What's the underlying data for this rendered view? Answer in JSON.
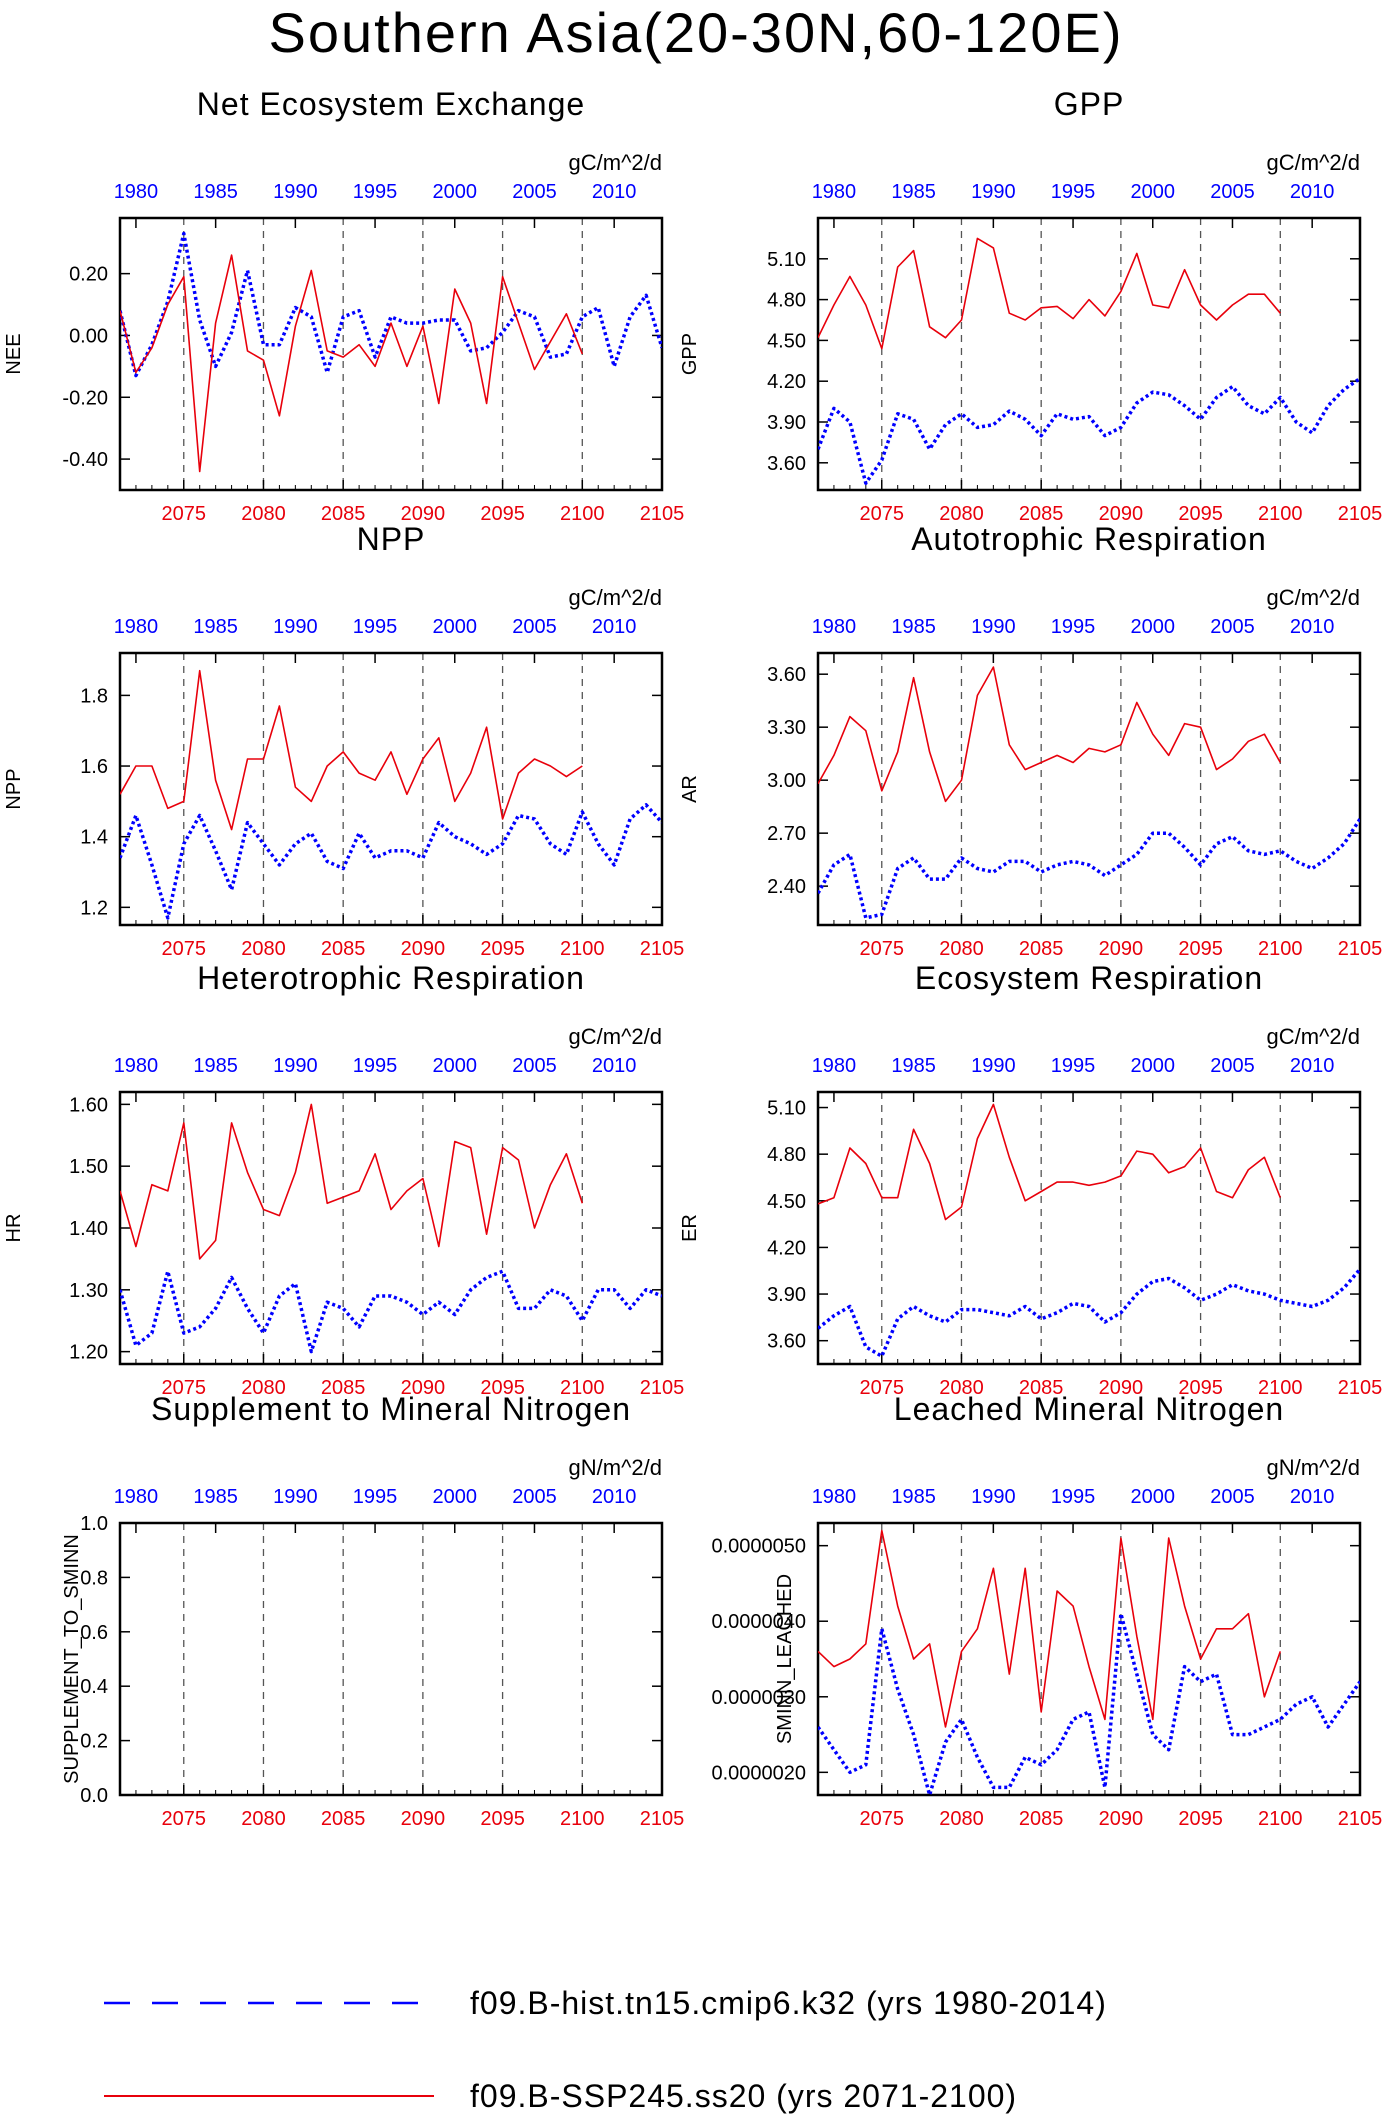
{
  "title": "Southern Asia(20-30N,60-120E)",
  "legend": [
    {
      "name": "f09.B-hist.tn15.cmip6.k32 (yrs 1980-2014)",
      "color": "#0000ff",
      "style": "dotted/dashed"
    },
    {
      "name": "f09.B-SSP245.ss20 (yrs 2071-2100)",
      "color": "#e8000b",
      "style": "solid"
    }
  ],
  "top_axis_ticks": [
    "1980",
    "1985",
    "1990",
    "1995",
    "2000",
    "2005",
    "2010"
  ],
  "bottom_axis_ticks": [
    "2075",
    "2080",
    "2085",
    "2090",
    "2095",
    "2100",
    "2105"
  ],
  "chart_data": [
    {
      "type": "line",
      "title": "Net Ecosystem Exchange",
      "ylabel": "NEE",
      "units": "gC/m^2/d",
      "ylim": [
        -0.5,
        0.38
      ],
      "yticks": [
        -0.4,
        -0.2,
        0.0,
        0.2
      ],
      "yticklabels": [
        "-0.40",
        "-0.20",
        "0.00",
        "0.20"
      ],
      "x_top": {
        "start": 1980,
        "end": 2014
      },
      "x_bottom": {
        "start": 2071,
        "end": 2100
      },
      "series": [
        {
          "name": "f09.B-hist.tn15.cmip6.k32 (yrs 1980-2014)",
          "values": [
            0.08,
            -0.13,
            -0.03,
            0.11,
            0.33,
            0.05,
            -0.1,
            0.01,
            0.21,
            -0.03,
            -0.03,
            0.09,
            0.06,
            -0.12,
            0.06,
            0.08,
            -0.07,
            0.06,
            0.04,
            0.04,
            0.05,
            0.05,
            -0.05,
            -0.04,
            0.01,
            0.08,
            0.06,
            -0.07,
            -0.06,
            0.06,
            0.09,
            -0.1,
            0.06,
            0.13,
            -0.04
          ]
        },
        {
          "name": "f09.B-SSP245.ss20 (yrs 2071-2100)",
          "values": [
            0.08,
            -0.12,
            -0.04,
            0.1,
            0.19,
            -0.44,
            0.04,
            0.26,
            -0.05,
            -0.08,
            -0.26,
            0.03,
            0.21,
            -0.05,
            -0.07,
            -0.03,
            -0.1,
            0.04,
            -0.1,
            0.03,
            -0.22,
            0.15,
            0.04,
            -0.22,
            0.19,
            0.04,
            -0.11,
            -0.02,
            0.07,
            -0.06
          ]
        }
      ]
    },
    {
      "type": "line",
      "title": "GPP",
      "ylabel": "GPP",
      "units": "gC/m^2/d",
      "ylim": [
        3.4,
        5.4
      ],
      "yticks": [
        3.6,
        3.9,
        4.2,
        4.5,
        4.8,
        5.1
      ],
      "yticklabels": [
        "3.60",
        "3.90",
        "4.20",
        "4.50",
        "4.80",
        "5.10"
      ],
      "x_top": {
        "start": 1980,
        "end": 2014
      },
      "x_bottom": {
        "start": 2071,
        "end": 2100
      },
      "series": [
        {
          "name": "f09.B-hist.tn15.cmip6.k32 (yrs 1980-2014)",
          "values": [
            3.7,
            4.0,
            3.9,
            3.45,
            3.62,
            3.96,
            3.92,
            3.7,
            3.88,
            3.96,
            3.86,
            3.88,
            3.98,
            3.92,
            3.8,
            3.96,
            3.92,
            3.94,
            3.8,
            3.86,
            4.04,
            4.12,
            4.1,
            4.02,
            3.92,
            4.08,
            4.16,
            4.02,
            3.96,
            4.08,
            3.9,
            3.82,
            4.02,
            4.14,
            4.22
          ]
        },
        {
          "name": "f09.B-SSP245.ss20 (yrs 2071-2100)",
          "values": [
            4.52,
            4.76,
            4.97,
            4.76,
            4.44,
            5.04,
            5.16,
            4.6,
            4.52,
            4.65,
            5.25,
            5.18,
            4.7,
            4.65,
            4.74,
            4.75,
            4.66,
            4.8,
            4.68,
            4.86,
            5.14,
            4.76,
            4.74,
            5.02,
            4.76,
            4.65,
            4.76,
            4.84,
            4.84,
            4.7
          ]
        }
      ]
    },
    {
      "type": "line",
      "title": "NPP",
      "ylabel": "NPP",
      "units": "gC/m^2/d",
      "ylim": [
        1.15,
        1.92
      ],
      "yticks": [
        1.2,
        1.4,
        1.6,
        1.8
      ],
      "yticklabels": [
        "1.2",
        "1.4",
        "1.6",
        "1.8"
      ],
      "x_top": {
        "start": 1980,
        "end": 2014
      },
      "x_bottom": {
        "start": 2071,
        "end": 2100
      },
      "series": [
        {
          "name": "f09.B-hist.tn15.cmip6.k32 (yrs 1980-2014)",
          "values": [
            1.34,
            1.46,
            1.32,
            1.17,
            1.38,
            1.46,
            1.36,
            1.25,
            1.44,
            1.38,
            1.32,
            1.38,
            1.41,
            1.33,
            1.31,
            1.41,
            1.34,
            1.36,
            1.36,
            1.34,
            1.44,
            1.4,
            1.38,
            1.35,
            1.38,
            1.46,
            1.45,
            1.38,
            1.35,
            1.47,
            1.38,
            1.32,
            1.45,
            1.49,
            1.44
          ]
        },
        {
          "name": "f09.B-SSP245.ss20 (yrs 2071-2100)",
          "values": [
            1.52,
            1.6,
            1.6,
            1.48,
            1.5,
            1.87,
            1.56,
            1.42,
            1.62,
            1.62,
            1.77,
            1.54,
            1.5,
            1.6,
            1.64,
            1.58,
            1.56,
            1.64,
            1.52,
            1.62,
            1.68,
            1.5,
            1.58,
            1.71,
            1.45,
            1.58,
            1.62,
            1.6,
            1.57,
            1.6
          ]
        }
      ]
    },
    {
      "type": "line",
      "title": "Autotrophic Respiration",
      "ylabel": "AR",
      "units": "gC/m^2/d",
      "ylim": [
        2.18,
        3.72
      ],
      "yticks": [
        2.4,
        2.7,
        3.0,
        3.3,
        3.6
      ],
      "yticklabels": [
        "2.40",
        "2.70",
        "3.00",
        "3.30",
        "3.60"
      ],
      "x_top": {
        "start": 1980,
        "end": 2014
      },
      "x_bottom": {
        "start": 2071,
        "end": 2100
      },
      "series": [
        {
          "name": "f09.B-hist.tn15.cmip6.k32 (yrs 1980-2014)",
          "values": [
            2.36,
            2.52,
            2.58,
            2.22,
            2.24,
            2.5,
            2.56,
            2.44,
            2.44,
            2.56,
            2.5,
            2.48,
            2.54,
            2.54,
            2.48,
            2.52,
            2.54,
            2.52,
            2.46,
            2.52,
            2.58,
            2.7,
            2.7,
            2.62,
            2.52,
            2.64,
            2.68,
            2.6,
            2.58,
            2.6,
            2.54,
            2.5,
            2.56,
            2.64,
            2.78
          ]
        },
        {
          "name": "f09.B-SSP245.ss20 (yrs 2071-2100)",
          "values": [
            2.98,
            3.14,
            3.36,
            3.28,
            2.94,
            3.16,
            3.58,
            3.16,
            2.88,
            3.0,
            3.48,
            3.64,
            3.2,
            3.06,
            3.1,
            3.14,
            3.1,
            3.18,
            3.16,
            3.2,
            3.44,
            3.26,
            3.14,
            3.32,
            3.3,
            3.06,
            3.12,
            3.22,
            3.26,
            3.1
          ]
        }
      ]
    },
    {
      "type": "line",
      "title": "Heterotrophic Respiration",
      "ylabel": "HR",
      "units": "gC/m^2/d",
      "ylim": [
        1.18,
        1.62
      ],
      "yticks": [
        1.2,
        1.3,
        1.4,
        1.5,
        1.6
      ],
      "yticklabels": [
        "1.20",
        "1.30",
        "1.40",
        "1.50",
        "1.60"
      ],
      "x_top": {
        "start": 1980,
        "end": 2014
      },
      "x_bottom": {
        "start": 2071,
        "end": 2100
      },
      "series": [
        {
          "name": "f09.B-hist.tn15.cmip6.k32 (yrs 1980-2014)",
          "values": [
            1.3,
            1.21,
            1.23,
            1.33,
            1.23,
            1.24,
            1.27,
            1.32,
            1.27,
            1.23,
            1.29,
            1.31,
            1.2,
            1.28,
            1.27,
            1.24,
            1.29,
            1.29,
            1.28,
            1.26,
            1.28,
            1.26,
            1.3,
            1.32,
            1.33,
            1.27,
            1.27,
            1.3,
            1.29,
            1.25,
            1.3,
            1.3,
            1.27,
            1.3,
            1.29
          ]
        },
        {
          "name": "f09.B-SSP245.ss20 (yrs 2071-2100)",
          "values": [
            1.46,
            1.37,
            1.47,
            1.46,
            1.57,
            1.35,
            1.38,
            1.57,
            1.49,
            1.43,
            1.42,
            1.49,
            1.6,
            1.44,
            1.45,
            1.46,
            1.52,
            1.43,
            1.46,
            1.48,
            1.37,
            1.54,
            1.53,
            1.39,
            1.53,
            1.51,
            1.4,
            1.47,
            1.52,
            1.44
          ]
        }
      ]
    },
    {
      "type": "line",
      "title": "Ecosystem Respiration",
      "ylabel": "ER",
      "units": "gC/m^2/d",
      "ylim": [
        3.45,
        5.2
      ],
      "yticks": [
        3.6,
        3.9,
        4.2,
        4.5,
        4.8,
        5.1
      ],
      "yticklabels": [
        "3.60",
        "3.90",
        "4.20",
        "4.50",
        "4.80",
        "5.10"
      ],
      "x_top": {
        "start": 1980,
        "end": 2014
      },
      "x_bottom": {
        "start": 2071,
        "end": 2100
      },
      "series": [
        {
          "name": "f09.B-hist.tn15.cmip6.k32 (yrs 1980-2014)",
          "values": [
            3.68,
            3.76,
            3.82,
            3.56,
            3.5,
            3.74,
            3.82,
            3.76,
            3.72,
            3.8,
            3.8,
            3.78,
            3.76,
            3.82,
            3.74,
            3.78,
            3.84,
            3.82,
            3.72,
            3.78,
            3.9,
            3.98,
            4.0,
            3.94,
            3.86,
            3.9,
            3.96,
            3.92,
            3.9,
            3.86,
            3.84,
            3.82,
            3.86,
            3.94,
            4.06
          ]
        },
        {
          "name": "f09.B-SSP245.ss20 (yrs 2071-2100)",
          "values": [
            4.48,
            4.52,
            4.84,
            4.74,
            4.52,
            4.52,
            4.96,
            4.74,
            4.38,
            4.46,
            4.9,
            5.12,
            4.78,
            4.5,
            4.56,
            4.62,
            4.62,
            4.6,
            4.62,
            4.66,
            4.82,
            4.8,
            4.68,
            4.72,
            4.84,
            4.56,
            4.52,
            4.7,
            4.78,
            4.52
          ]
        }
      ]
    },
    {
      "type": "line",
      "title": "Supplement to Mineral Nitrogen",
      "ylabel": "SUPPLEMENT_TO_SMINN",
      "units": "gN/m^2/d",
      "ylim": [
        0,
        1.0
      ],
      "yticks": [
        0.0,
        0.2,
        0.4,
        0.6,
        0.8,
        1.0
      ],
      "yticklabels": [
        "0.0",
        "0.2",
        "0.4",
        "0.6",
        "0.8",
        "1.0"
      ],
      "x_top": {
        "start": 1980,
        "end": 2014
      },
      "x_bottom": {
        "start": 2071,
        "end": 2100
      },
      "series": []
    },
    {
      "type": "line",
      "title": "Leached Mineral Nitrogen",
      "ylabel": "SMINN_LEACHED",
      "units": "gN/m^2/d",
      "ylim": [
        1.7e-06,
        5.3e-06
      ],
      "yticks": [
        2e-06,
        3e-06,
        4e-06,
        5e-06
      ],
      "yticklabels": [
        "0.0000020",
        "0.0000030",
        "0.0000040",
        "0.0000050"
      ],
      "x_top": {
        "start": 1980,
        "end": 2014
      },
      "x_bottom": {
        "start": 2071,
        "end": 2100
      },
      "series": [
        {
          "name": "f09.B-hist.tn15.cmip6.k32 (yrs 1980-2014)",
          "values": [
            2.6e-06,
            2.3e-06,
            2e-06,
            2.1e-06,
            3.9e-06,
            3.1e-06,
            2.5e-06,
            1.7e-06,
            2.4e-06,
            2.7e-06,
            2.2e-06,
            1.8e-06,
            1.8e-06,
            2.2e-06,
            2.1e-06,
            2.3e-06,
            2.7e-06,
            2.8e-06,
            1.8e-06,
            4.1e-06,
            3.3e-06,
            2.5e-06,
            2.3e-06,
            3.4e-06,
            3.2e-06,
            3.3e-06,
            2.5e-06,
            2.5e-06,
            2.6e-06,
            2.7e-06,
            2.9e-06,
            3e-06,
            2.6e-06,
            2.9e-06,
            3.2e-06
          ]
        },
        {
          "name": "f09.B-SSP245.ss20 (yrs 2071-2100)",
          "values": [
            3.6e-06,
            3.4e-06,
            3.5e-06,
            3.7e-06,
            5.2e-06,
            4.2e-06,
            3.5e-06,
            3.7e-06,
            2.6e-06,
            3.6e-06,
            3.9e-06,
            4.7e-06,
            3.3e-06,
            4.7e-06,
            2.8e-06,
            4.4e-06,
            4.2e-06,
            3.4e-06,
            2.7e-06,
            5.1e-06,
            3.8e-06,
            2.7e-06,
            5.1e-06,
            4.2e-06,
            3.5e-06,
            3.9e-06,
            3.9e-06,
            4.1e-06,
            3e-06,
            3.6e-06
          ]
        }
      ]
    }
  ]
}
